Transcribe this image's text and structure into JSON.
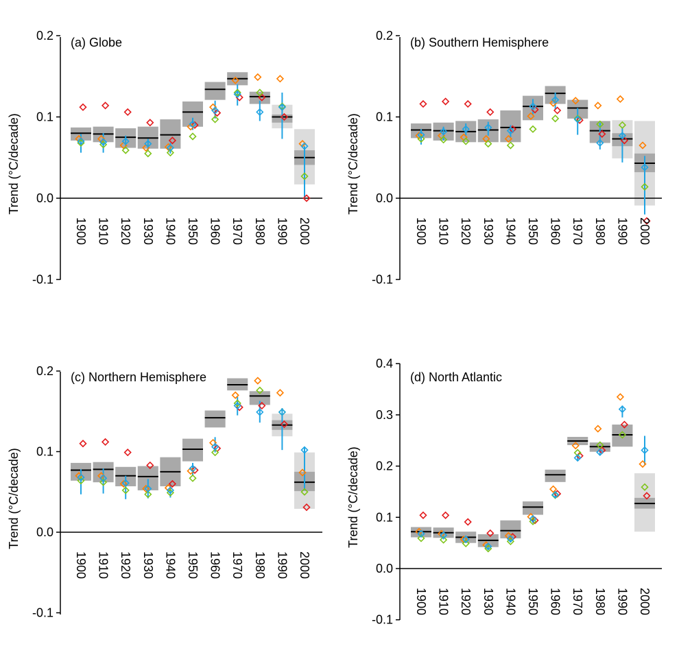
{
  "chart_data": [
    {
      "type": "scatter",
      "title": "(a) Globe",
      "ylabel": "Trend (°C/decade)",
      "ylim": [
        -0.1,
        0.2
      ],
      "yticks": [
        -0.1,
        0.0,
        0.1,
        0.2
      ],
      "ytick_labels": [
        "-0.1",
        "0.0",
        "0.1",
        "0.2"
      ],
      "categories": [
        "1900",
        "1910",
        "1920",
        "1930",
        "1940",
        "1950",
        "1960",
        "1970",
        "1980",
        "1990",
        "2000"
      ],
      "ensemble_mean": [
        0.08,
        0.079,
        0.075,
        0.074,
        0.078,
        0.106,
        0.134,
        0.147,
        0.125,
        0.1,
        0.05
      ],
      "range_low": [
        0.071,
        0.069,
        0.062,
        0.061,
        0.061,
        0.088,
        0.121,
        0.139,
        0.116,
        0.086,
        0.017
      ],
      "range_high": [
        0.087,
        0.088,
        0.086,
        0.088,
        0.097,
        0.119,
        0.143,
        0.155,
        0.131,
        0.115,
        0.085
      ],
      "inner_low": [
        0.071,
        0.069,
        0.062,
        0.061,
        0.061,
        0.088,
        0.121,
        0.139,
        0.116,
        0.093,
        0.041
      ],
      "inner_high": [
        0.087,
        0.088,
        0.086,
        0.088,
        0.097,
        0.119,
        0.143,
        0.155,
        0.131,
        0.103,
        0.059
      ],
      "series": [
        {
          "color": "#e31a1c",
          "values": [
            0.112,
            0.114,
            0.106,
            0.093,
            0.071,
            0.09,
            0.105,
            0.124,
            0.124,
            0.1,
            0.0
          ]
        },
        {
          "color": "#ff7f00",
          "values": [
            0.073,
            0.073,
            0.065,
            0.062,
            0.063,
            0.088,
            0.112,
            0.145,
            0.149,
            0.147,
            0.067
          ]
        },
        {
          "color": "#7fc41b",
          "values": [
            0.068,
            0.066,
            0.059,
            0.055,
            0.056,
            0.076,
            0.097,
            0.13,
            0.13,
            0.113,
            0.027
          ]
        },
        {
          "color": "#1fa4e3",
          "values": [
            0.07,
            0.069,
            0.07,
            0.067,
            0.062,
            0.091,
            0.108,
            0.128,
            0.106,
            0.112,
            0.064
          ],
          "err_low": [
            0.056,
            0.056,
            0.061,
            0.058,
            0.055,
            0.084,
            0.098,
            0.114,
            0.095,
            0.073,
            0.0
          ],
          "err_high": [
            0.079,
            0.08,
            0.077,
            0.073,
            0.068,
            0.099,
            0.12,
            0.14,
            0.12,
            0.13,
            0.064
          ]
        }
      ]
    },
    {
      "type": "scatter",
      "title": "(b) Southern Hemisphere",
      "ylabel": "Trend (°C/decade)",
      "ylim": [
        -0.1,
        0.2
      ],
      "yticks": [
        -0.1,
        0.0,
        0.1,
        0.2
      ],
      "ytick_labels": [
        "-0.1",
        "0.0",
        "0.1",
        "0.2"
      ],
      "categories": [
        "1900",
        "1910",
        "1920",
        "1930",
        "1940",
        "1950",
        "1960",
        "1970",
        "1980",
        "1990",
        "2000"
      ],
      "ensemble_mean": [
        0.084,
        0.083,
        0.082,
        0.084,
        0.087,
        0.113,
        0.129,
        0.111,
        0.083,
        0.073,
        0.043
      ],
      "range_low": [
        0.074,
        0.071,
        0.069,
        0.069,
        0.069,
        0.096,
        0.116,
        0.098,
        0.068,
        0.049,
        -0.009
      ],
      "range_high": [
        0.092,
        0.093,
        0.095,
        0.097,
        0.108,
        0.126,
        0.138,
        0.121,
        0.095,
        0.096,
        0.095
      ],
      "inner_low": [
        0.074,
        0.071,
        0.069,
        0.069,
        0.069,
        0.096,
        0.116,
        0.098,
        0.068,
        0.064,
        0.032
      ],
      "inner_high": [
        0.092,
        0.093,
        0.095,
        0.097,
        0.108,
        0.126,
        0.138,
        0.121,
        0.095,
        0.08,
        0.055
      ],
      "series": [
        {
          "color": "#e31a1c",
          "values": [
            0.116,
            0.119,
            0.116,
            0.106,
            0.085,
            0.109,
            0.108,
            0.096,
            0.079,
            0.071,
            -0.028
          ]
        },
        {
          "color": "#ff7f00",
          "values": [
            0.077,
            0.077,
            0.075,
            0.073,
            0.073,
            0.101,
            0.117,
            0.12,
            0.114,
            0.122,
            0.065
          ]
        },
        {
          "color": "#7fc41b",
          "values": [
            0.073,
            0.072,
            0.07,
            0.067,
            0.065,
            0.085,
            0.098,
            0.098,
            0.091,
            0.09,
            0.014
          ]
        },
        {
          "color": "#1fa4e3",
          "values": [
            0.078,
            0.082,
            0.085,
            0.087,
            0.083,
            0.113,
            0.121,
            0.097,
            0.068,
            0.077,
            0.038
          ],
          "err_low": [
            0.066,
            0.071,
            0.077,
            0.077,
            0.075,
            0.103,
            0.109,
            0.078,
            0.06,
            0.044,
            -0.02
          ],
          "err_high": [
            0.085,
            0.088,
            0.092,
            0.094,
            0.09,
            0.122,
            0.13,
            0.111,
            0.093,
            0.087,
            0.052
          ]
        }
      ]
    },
    {
      "type": "scatter",
      "title": "(c) Northern Hemisphere",
      "ylabel": "Trend (°C/decade)",
      "ylim": [
        -0.1,
        0.2
      ],
      "yticks": [
        -0.1,
        0.0,
        0.1,
        0.2
      ],
      "ytick_labels": [
        "-0.1",
        "0.0",
        "0.1",
        "0.2"
      ],
      "categories": [
        "1900",
        "1910",
        "1920",
        "1930",
        "1940",
        "1950",
        "1960",
        "1970",
        "1980",
        "1990",
        "2000"
      ],
      "ensemble_mean": [
        0.077,
        0.078,
        0.07,
        0.069,
        0.075,
        0.103,
        0.142,
        0.183,
        0.169,
        0.133,
        0.062
      ],
      "range_low": [
        0.064,
        0.062,
        0.057,
        0.052,
        0.057,
        0.088,
        0.13,
        0.176,
        0.158,
        0.119,
        0.029
      ],
      "range_high": [
        0.086,
        0.087,
        0.081,
        0.082,
        0.093,
        0.116,
        0.151,
        0.191,
        0.175,
        0.147,
        0.099
      ],
      "inner_low": [
        0.064,
        0.062,
        0.057,
        0.052,
        0.057,
        0.088,
        0.13,
        0.176,
        0.158,
        0.127,
        0.051
      ],
      "inner_high": [
        0.086,
        0.087,
        0.081,
        0.082,
        0.093,
        0.116,
        0.151,
        0.191,
        0.175,
        0.139,
        0.075
      ],
      "series": [
        {
          "color": "#e31a1c",
          "values": [
            0.11,
            0.112,
            0.099,
            0.083,
            0.06,
            0.077,
            0.104,
            0.155,
            0.157,
            0.134,
            0.031
          ]
        },
        {
          "color": "#ff7f00",
          "values": [
            0.07,
            0.07,
            0.06,
            0.054,
            0.055,
            0.076,
            0.111,
            0.17,
            0.188,
            0.173,
            0.074
          ]
        },
        {
          "color": "#7fc41b",
          "values": [
            0.064,
            0.062,
            0.052,
            0.047,
            0.049,
            0.067,
            0.099,
            0.16,
            0.176,
            0.149,
            0.05
          ]
        },
        {
          "color": "#1fa4e3",
          "values": [
            0.068,
            0.067,
            0.061,
            0.054,
            0.052,
            0.079,
            0.106,
            0.157,
            0.149,
            0.149,
            0.102
          ],
          "err_low": [
            0.047,
            0.048,
            0.041,
            0.042,
            0.043,
            0.071,
            0.099,
            0.145,
            0.136,
            0.102,
            0.052
          ],
          "err_high": [
            0.078,
            0.079,
            0.07,
            0.066,
            0.06,
            0.086,
            0.118,
            0.168,
            0.163,
            0.154,
            0.106
          ]
        }
      ]
    },
    {
      "type": "scatter",
      "title": "(d) North Atlantic",
      "ylabel": "Trend (°C/decade)",
      "ylim": [
        -0.1,
        0.4
      ],
      "yticks": [
        -0.1,
        0.0,
        0.1,
        0.2,
        0.3,
        0.4
      ],
      "ytick_labels": [
        "-0.1",
        "0.0",
        "0.1",
        "0.2",
        "0.3",
        "0.4"
      ],
      "categories": [
        "1900",
        "1910",
        "1920",
        "1930",
        "1940",
        "1950",
        "1960",
        "1970",
        "1980",
        "1990",
        "2000"
      ],
      "ensemble_mean": [
        0.072,
        0.07,
        0.061,
        0.055,
        0.074,
        0.12,
        0.183,
        0.249,
        0.238,
        0.261,
        0.127
      ],
      "range_low": [
        0.061,
        0.06,
        0.05,
        0.042,
        0.059,
        0.105,
        0.169,
        0.241,
        0.228,
        0.238,
        0.072
      ],
      "range_high": [
        0.081,
        0.08,
        0.072,
        0.067,
        0.094,
        0.131,
        0.193,
        0.257,
        0.246,
        0.281,
        0.186
      ],
      "inner_low": [
        0.061,
        0.06,
        0.05,
        0.042,
        0.059,
        0.105,
        0.169,
        0.241,
        0.228,
        0.238,
        0.117
      ],
      "inner_high": [
        0.081,
        0.08,
        0.072,
        0.067,
        0.094,
        0.131,
        0.193,
        0.257,
        0.246,
        0.281,
        0.138
      ],
      "series": [
        {
          "color": "#e31a1c",
          "values": [
            0.104,
            0.104,
            0.091,
            0.069,
            0.062,
            0.094,
            0.146,
            0.22,
            0.231,
            0.281,
            0.142
          ]
        },
        {
          "color": "#ff7f00",
          "values": [
            0.072,
            0.068,
            0.057,
            0.046,
            0.064,
            0.101,
            0.155,
            0.24,
            0.273,
            0.335,
            0.204
          ]
        },
        {
          "color": "#7fc41b",
          "values": [
            0.059,
            0.056,
            0.049,
            0.039,
            0.053,
            0.092,
            0.143,
            0.226,
            0.241,
            0.261,
            0.159
          ]
        },
        {
          "color": "#1fa4e3",
          "values": [
            0.068,
            0.065,
            0.057,
            0.043,
            0.058,
            0.097,
            0.144,
            0.216,
            0.227,
            0.311,
            0.231
          ],
          "err_low": [
            0.061,
            0.057,
            0.05,
            0.036,
            0.051,
            0.089,
            0.138,
            0.211,
            0.221,
            0.295,
            0.203
          ],
          "err_high": [
            0.075,
            0.073,
            0.064,
            0.05,
            0.065,
            0.104,
            0.15,
            0.221,
            0.233,
            0.318,
            0.259
          ]
        }
      ]
    }
  ]
}
